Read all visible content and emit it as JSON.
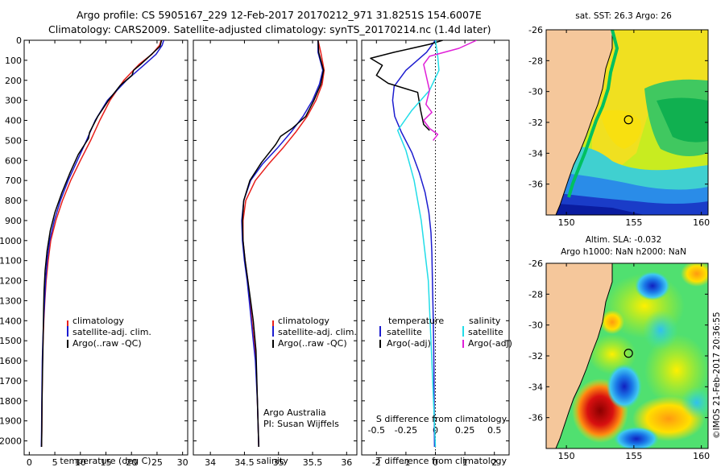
{
  "title": {
    "line1": "Argo profile: CS 5905167_229 12-Feb-2017 20170212_971 31.8251S 154.6007E",
    "line2": "Climatology: CARS2009. Satellite-adjusted climatology: synTS_20170214.nc (1.4d later)"
  },
  "colors": {
    "climatology": "#e8201c",
    "satellite": "#1c1ccf",
    "argo": "#000000",
    "salinity_satellite": "#22dde8",
    "salinity_argo": "#e020d8",
    "land": "#f5c79b"
  },
  "annotations": {
    "argo_australia": "Argo Australia",
    "pi": "PI: Susan Wijffels",
    "timestamp": "©IMOS 21-Feb-2017 20:36:55"
  },
  "chart_data": [
    {
      "id": "temperature",
      "type": "line",
      "xlabel": "temperature (deg C)",
      "xlim": [
        -1,
        31
      ],
      "xticks": [
        0,
        5,
        10,
        15,
        20,
        25,
        30
      ],
      "xtick_labels": [
        "0",
        "5",
        "10",
        "15",
        "20",
        "25",
        "30"
      ],
      "ylim": [
        2070,
        0
      ],
      "yticks": [
        0,
        100,
        200,
        300,
        400,
        500,
        600,
        700,
        800,
        900,
        1000,
        1100,
        1200,
        1300,
        1400,
        1500,
        1600,
        1700,
        1800,
        1900,
        2000
      ],
      "ytick_labels": [
        "0",
        "100",
        "200",
        "300",
        "400",
        "500",
        "600",
        "700",
        "800",
        "900",
        "1000",
        "1100",
        "1200",
        "1300",
        "1400",
        "1500",
        "1600",
        "1700",
        "1800",
        "1900",
        "2000"
      ],
      "legend": {
        "position": "middle-center",
        "entries": [
          "climatology",
          "satellite-adj. clim.",
          "Argo(..raw -QC)"
        ]
      },
      "series": [
        {
          "name": "climatology",
          "color": "#e8201c",
          "x": [
            25.8,
            25.5,
            24.0,
            21.5,
            18.5,
            15.8,
            13.8,
            12.0,
            10.0,
            8.1,
            6.5,
            5.2,
            4.2,
            3.7,
            3.3,
            3.05,
            2.85,
            2.7,
            2.6,
            2.5,
            2.45,
            2.4
          ],
          "y": [
            0,
            25,
            70,
            120,
            200,
            300,
            400,
            500,
            600,
            700,
            800,
            900,
            1000,
            1100,
            1200,
            1300,
            1400,
            1500,
            1600,
            1800,
            1950,
            2030
          ]
        },
        {
          "name": "satellite-adj. clim.",
          "color": "#1c1ccf",
          "x": [
            26.3,
            26.0,
            24.8,
            22.6,
            19.0,
            15.3,
            12.9,
            11.2,
            9.4,
            7.6,
            6.1,
            4.9,
            4.0,
            3.5,
            3.2,
            3.0,
            2.8,
            2.65,
            2.55,
            2.45,
            2.4,
            2.35
          ],
          "y": [
            0,
            25,
            70,
            120,
            200,
            300,
            400,
            500,
            600,
            700,
            800,
            900,
            1000,
            1100,
            1200,
            1300,
            1400,
            1500,
            1600,
            1800,
            1950,
            2030
          ]
        },
        {
          "name": "Argo(..raw -QC)",
          "color": "#000000",
          "x": [
            25.9,
            25.6,
            23.5,
            21.8,
            20.4,
            20.1,
            17.8,
            15.5,
            13.4,
            11.8,
            11.6,
            9.6,
            8.0,
            6.4,
            5.0,
            4.1,
            3.5,
            3.1,
            2.9,
            2.8,
            2.7,
            2.6,
            2.5,
            2.45,
            2.4
          ],
          "y": [
            0,
            30,
            80,
            120,
            150,
            175,
            225,
            300,
            380,
            460,
            490,
            570,
            660,
            760,
            860,
            950,
            1050,
            1150,
            1250,
            1350,
            1500,
            1650,
            1800,
            1950,
            2030
          ]
        }
      ]
    },
    {
      "id": "salinity",
      "type": "line",
      "xlabel": "salinity",
      "xlim": [
        33.75,
        36.15
      ],
      "xticks": [
        34,
        34.5,
        35,
        35.5,
        36
      ],
      "xtick_labels": [
        "34",
        "34.5",
        "35",
        "35.5",
        "36"
      ],
      "ylim": [
        2070,
        0
      ],
      "legend": {
        "position": "middle-center",
        "entries": [
          "climatology",
          "satellite-adj. clim.",
          "Argo(..raw -QC)"
        ]
      },
      "series": [
        {
          "name": "climatology",
          "color": "#e8201c",
          "x": [
            35.58,
            35.62,
            35.67,
            35.64,
            35.55,
            35.42,
            35.25,
            35.06,
            34.85,
            34.66,
            34.52,
            34.48,
            34.48,
            34.51,
            34.55,
            34.58,
            34.61,
            34.64,
            34.67,
            34.69,
            34.71
          ],
          "y": [
            0,
            60,
            150,
            220,
            300,
            380,
            460,
            540,
            620,
            700,
            800,
            900,
            1000,
            1100,
            1200,
            1300,
            1400,
            1500,
            1600,
            1800,
            2030
          ]
        },
        {
          "name": "satellite-adj. clim.",
          "color": "#1c1ccf",
          "x": [
            35.58,
            35.58,
            35.65,
            35.6,
            35.5,
            35.36,
            35.18,
            34.98,
            34.76,
            34.59,
            34.49,
            34.46,
            34.47,
            34.5,
            34.54,
            34.57,
            34.6,
            34.63,
            34.66,
            34.69,
            34.71
          ],
          "y": [
            0,
            60,
            150,
            220,
            300,
            380,
            460,
            540,
            620,
            700,
            800,
            900,
            1000,
            1100,
            1200,
            1300,
            1400,
            1500,
            1600,
            1800,
            2030
          ]
        },
        {
          "name": "Argo(..raw -QC)",
          "color": "#000000",
          "x": [
            35.58,
            35.59,
            35.66,
            35.62,
            35.52,
            35.4,
            35.2,
            35.03,
            34.96,
            34.75,
            34.58,
            34.49,
            34.47,
            34.48,
            34.51,
            34.55,
            34.59,
            34.63,
            34.67,
            34.71
          ],
          "y": [
            0,
            60,
            150,
            220,
            300,
            380,
            440,
            480,
            520,
            610,
            700,
            800,
            900,
            1000,
            1100,
            1200,
            1300,
            1400,
            1550,
            2030
          ]
        }
      ]
    },
    {
      "id": "difference",
      "type": "line",
      "xlabel": "T difference from climatology",
      "xlabel_top": "S difference from climatology",
      "xlim": [
        -2.5,
        2.5
      ],
      "xticks": [
        -2,
        -1,
        0,
        1,
        2
      ],
      "xtick_labels": [
        "-2",
        "-1",
        "0",
        "1",
        "2"
      ],
      "x2ticks": [
        -0.5,
        -0.25,
        0,
        0.25,
        0.5
      ],
      "x2tick_labels": [
        "-0.5",
        "-0.25",
        "0",
        "0.25",
        "0.5"
      ],
      "ylim": [
        2070,
        0
      ],
      "legend": {
        "position": "middle-center",
        "groups": [
          {
            "header": "temperature",
            "entries": [
              "satellite",
              "Argo(-adj)"
            ]
          },
          {
            "header": "salinity",
            "entries": [
              "satellite",
              "Argo(-adj)"
            ]
          }
        ]
      },
      "series": [
        {
          "name": "temperature satellite",
          "color": "#1c1ccf",
          "x": [
            0.0,
            -0.3,
            -1.0,
            -1.4,
            -1.45,
            -1.38,
            -1.15,
            -0.8,
            -0.55,
            -0.35,
            -0.22,
            -0.15,
            -0.12,
            -0.1,
            -0.08,
            -0.06,
            -0.05,
            -0.04,
            -0.03
          ],
          "y": [
            0,
            60,
            150,
            230,
            300,
            380,
            460,
            560,
            660,
            760,
            860,
            960,
            1060,
            1200,
            1350,
            1500,
            1650,
            1850,
            2030
          ]
        },
        {
          "name": "temperature Argo(-adj)",
          "color": "#000000",
          "x": [
            0.25,
            -0.2,
            -1.4,
            -2.2,
            -1.8,
            -2.0,
            -1.6,
            -0.6,
            -0.5,
            -0.4,
            -0.2
          ],
          "y": [
            0,
            20,
            60,
            90,
            125,
            175,
            215,
            260,
            350,
            420,
            450
          ]
        },
        {
          "name": "salinity satellite",
          "color": "#22dde8",
          "x": [
            0.0,
            0.02,
            0.03,
            -0.05,
            -0.2,
            -0.32,
            -0.25,
            -0.18,
            -0.12,
            -0.06,
            -0.03,
            0.0
          ],
          "y": [
            0,
            80,
            150,
            250,
            350,
            450,
            550,
            700,
            900,
            1200,
            1600,
            2030
          ]
        },
        {
          "name": "salinity Argo(-adj)",
          "color": "#e020d8",
          "x": [
            0.35,
            0.2,
            -0.05,
            -0.1,
            -0.05,
            -0.08,
            -0.03,
            -0.1,
            -0.05,
            0.02,
            -0.02
          ],
          "y": [
            0,
            40,
            80,
            120,
            250,
            320,
            360,
            400,
            440,
            470,
            500
          ]
        }
      ]
    },
    {
      "id": "sst_map",
      "type": "heatmap",
      "title": "sat. SST: 26.3 Argo: 26",
      "xlim": [
        148.5,
        160.5
      ],
      "ylim": [
        -38,
        -26
      ],
      "xticks": [
        150,
        155,
        160
      ],
      "xtick_labels": [
        "150",
        "155",
        "160"
      ],
      "yticks": [
        -26,
        -28,
        -30,
        -32,
        -34,
        -36
      ],
      "ytick_labels": [
        "-26",
        "-28",
        "-30",
        "-32",
        "-34",
        "-36"
      ],
      "marker": {
        "lon": 154.6,
        "lat": -31.83
      }
    },
    {
      "id": "sla_map",
      "type": "heatmap",
      "title_line1": "Altim. SLA: -0.032",
      "title_line2": "Argo h1000: NaN h2000: NaN",
      "xlim": [
        148.5,
        160.5
      ],
      "ylim": [
        -38,
        -26
      ],
      "xticks": [
        150,
        155,
        160
      ],
      "xtick_labels": [
        "150",
        "155",
        "160"
      ],
      "yticks": [
        -26,
        -28,
        -30,
        -32,
        -34,
        -36
      ],
      "ytick_labels": [
        "-26",
        "-28",
        "-30",
        "-32",
        "-34",
        "-36"
      ],
      "marker": {
        "lon": 154.6,
        "lat": -31.83
      }
    }
  ]
}
